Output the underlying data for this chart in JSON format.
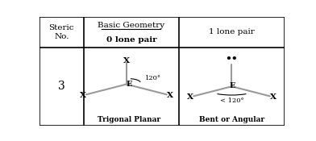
{
  "title_col1": "Steric\nNo.",
  "title_col2_line1": "Basic Geometry",
  "title_col2_line2": "0 lone pair",
  "title_col3": "1 lone pair",
  "steric_no": "3",
  "label_trigonal": "Trigonal Planar",
  "label_bent": "Bent or Angular",
  "angle_trigonal": "120°",
  "angle_bent": "< 120°",
  "center_label": "E",
  "x_label": "X",
  "bg_color": "#ffffff",
  "line_color": "#000000",
  "bond_color": "#999999",
  "col_dividers": [
    0.18,
    0.57
  ],
  "row_divider": 0.72
}
